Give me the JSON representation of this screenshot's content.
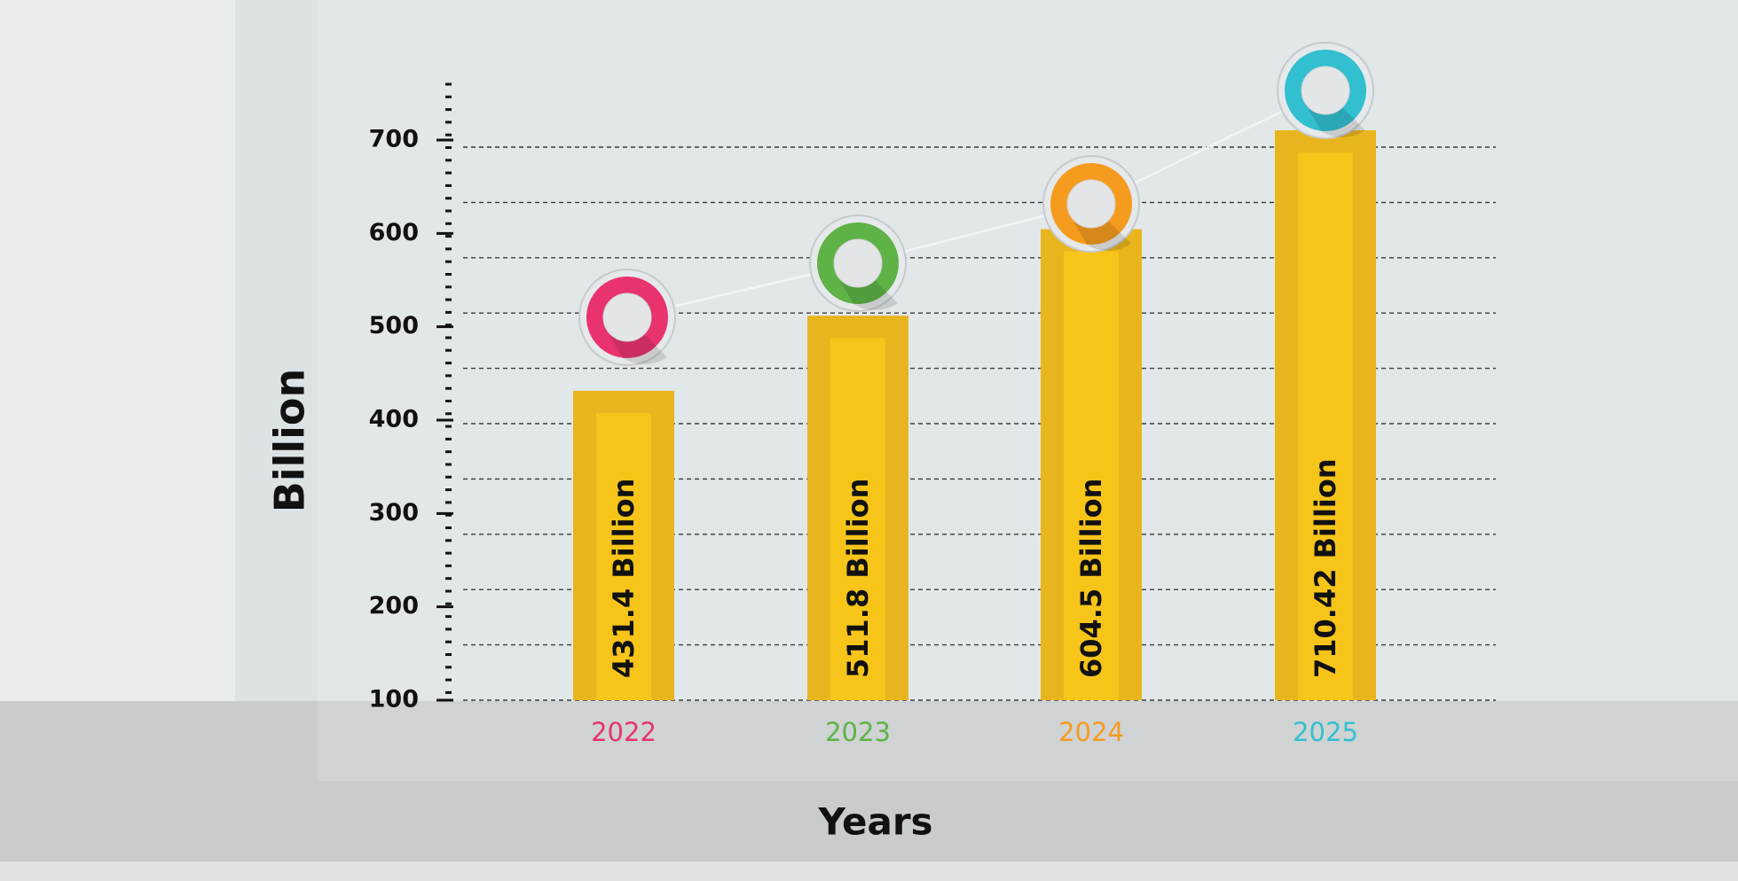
{
  "chart_data": {
    "type": "bar",
    "xlabel": "Years",
    "ylabel": "Billion",
    "ylim": [
      100,
      770
    ],
    "grid": true,
    "categories": [
      "2022",
      "2023",
      "2024",
      "2025"
    ],
    "values": [
      431.4,
      511.8,
      604.5,
      710.42
    ],
    "data_labels": [
      "431.4 Billion",
      "511.8 Billion",
      "604.5 Billion",
      "710.42 Billion"
    ],
    "yticks": [
      "100",
      "200",
      "300",
      "400",
      "500",
      "600",
      "700"
    ],
    "category_colors": [
      "#e8336f",
      "#5fb246",
      "#f59b1e",
      "#32bfcf"
    ],
    "bar_color": "#e9b51e",
    "bar_inner_color": "#f7c41a",
    "marker_style": "ring-on-bar-top-connected-by-line"
  }
}
